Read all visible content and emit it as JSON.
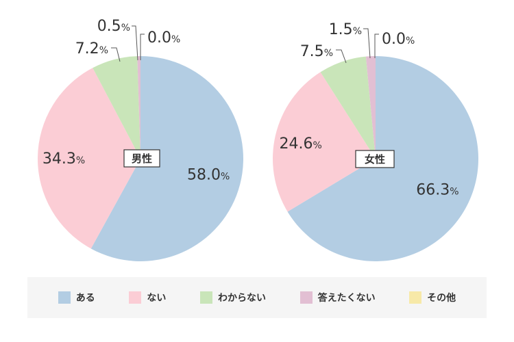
{
  "chart_data": [
    {
      "type": "pie",
      "label": "男性",
      "unit": "%",
      "categories": [
        "ある",
        "ない",
        "わからない",
        "答えたくない",
        "その他"
      ],
      "values": [
        58.0,
        34.3,
        7.2,
        0.5,
        0.0
      ],
      "value_labels": [
        "58.0",
        "34.3",
        "7.2",
        "0.5",
        "0.0"
      ]
    },
    {
      "type": "pie",
      "label": "女性",
      "unit": "%",
      "categories": [
        "ある",
        "ない",
        "わからない",
        "答えたくない",
        "その他"
      ],
      "values": [
        66.3,
        24.6,
        7.5,
        1.5,
        0.0
      ],
      "value_labels": [
        "66.3",
        "24.6",
        "7.5",
        "1.5",
        "0.0"
      ]
    }
  ],
  "legend": {
    "placement": "bottom",
    "items": [
      {
        "label": "ある",
        "color": "#b3cde3"
      },
      {
        "label": "ない",
        "color": "#fbcdd5"
      },
      {
        "label": "わからない",
        "color": "#c9e5b9"
      },
      {
        "label": "答えたくない",
        "color": "#e2bfd3"
      },
      {
        "label": "その他",
        "color": "#f7e9a8"
      }
    ]
  }
}
